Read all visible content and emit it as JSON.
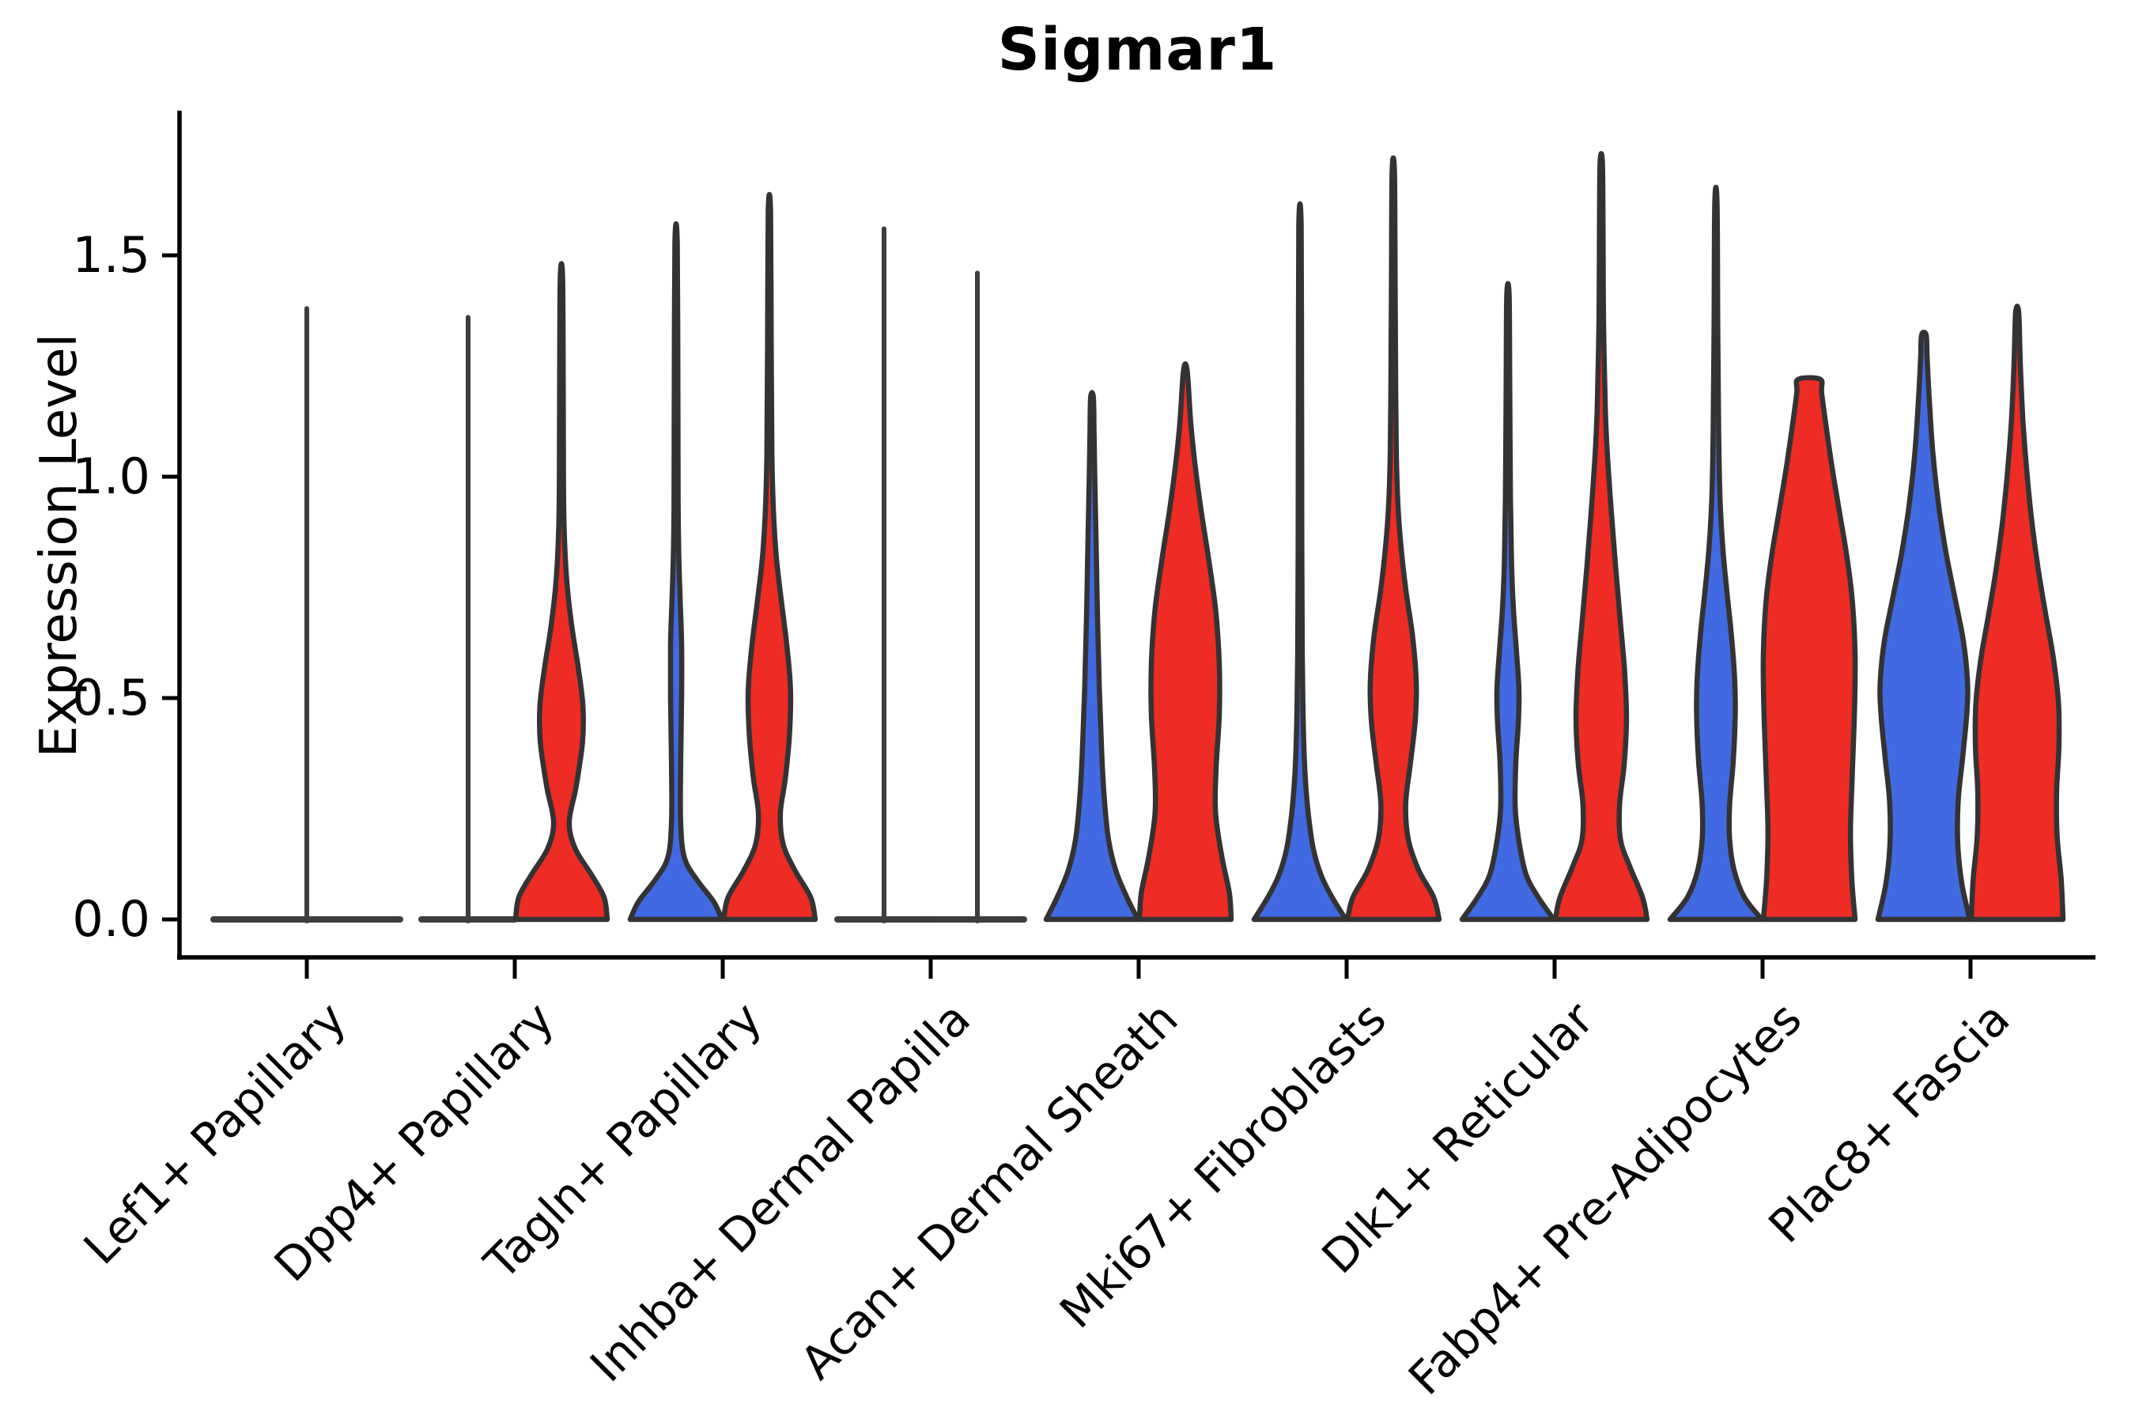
{
  "chart_data": {
    "type": "violin",
    "title": "Sigmar1",
    "ylabel": "Expression Level",
    "xlabel": "",
    "yticks": [
      0.0,
      0.5,
      1.0,
      1.5
    ],
    "ylim": [
      -0.09,
      1.83
    ],
    "grid": false,
    "legend": "none",
    "split_colors": {
      "left_fill": "#4169E1",
      "right_fill": "#EE2B24",
      "outline": "#333333",
      "flat_line": "#3d3d3d",
      "axis": "#000000"
    },
    "categories": [
      "Lef1+ Papillary",
      "Dpp4+ Papillary",
      "Tagln+ Papillary",
      "Inhba+ Dermal Papilla",
      "Acan+ Dermal Sheath",
      "Mki67+ Fibroblasts",
      "Dlk1+ Reticular",
      "Fabp4+ Pre-Adipocytes",
      "Plac8+ Fascia"
    ],
    "groups": [
      {
        "category": "Lef1+ Papillary",
        "violins": [
          {
            "side": "center",
            "fill": "none",
            "style": "flat",
            "max": 1.38
          }
        ]
      },
      {
        "category": "Dpp4+ Papillary",
        "violins": [
          {
            "side": "left",
            "fill": "blue",
            "style": "flat",
            "max": 1.36
          },
          {
            "side": "right",
            "fill": "red",
            "style": "density",
            "max": 1.45,
            "profile": [
              [
                0,
                1.0
              ],
              [
                0.05,
                0.93
              ],
              [
                0.1,
                0.66
              ],
              [
                0.16,
                0.3
              ],
              [
                0.22,
                0.17
              ],
              [
                0.3,
                0.32
              ],
              [
                0.4,
                0.46
              ],
              [
                0.48,
                0.47
              ],
              [
                0.56,
                0.38
              ],
              [
                0.66,
                0.23
              ],
              [
                0.76,
                0.12
              ],
              [
                0.88,
                0.06
              ],
              [
                1.0,
                0.045
              ],
              [
                1.2,
                0.04
              ],
              [
                1.45,
                0.025
              ]
            ]
          }
        ]
      },
      {
        "category": "Tagln+ Papillary",
        "violins": [
          {
            "side": "left",
            "fill": "blue",
            "style": "density",
            "max": 1.53,
            "profile": [
              [
                0,
                1.0
              ],
              [
                0.04,
                0.82
              ],
              [
                0.09,
                0.45
              ],
              [
                0.14,
                0.18
              ],
              [
                0.22,
                0.1
              ],
              [
                0.35,
                0.1
              ],
              [
                0.5,
                0.12
              ],
              [
                0.62,
                0.12
              ],
              [
                0.72,
                0.09
              ],
              [
                0.82,
                0.06
              ],
              [
                0.95,
                0.045
              ],
              [
                1.2,
                0.04
              ],
              [
                1.53,
                0.025
              ]
            ]
          },
          {
            "side": "right",
            "fill": "red",
            "style": "density",
            "max": 1.6,
            "profile": [
              [
                0,
                1.0
              ],
              [
                0.05,
                0.9
              ],
              [
                0.11,
                0.56
              ],
              [
                0.17,
                0.3
              ],
              [
                0.24,
                0.24
              ],
              [
                0.32,
                0.35
              ],
              [
                0.42,
                0.44
              ],
              [
                0.52,
                0.46
              ],
              [
                0.62,
                0.38
              ],
              [
                0.72,
                0.26
              ],
              [
                0.82,
                0.15
              ],
              [
                0.92,
                0.09
              ],
              [
                1.05,
                0.055
              ],
              [
                1.3,
                0.04
              ],
              [
                1.6,
                0.025
              ]
            ]
          }
        ]
      },
      {
        "category": "Inhba+ Dermal Papilla",
        "violins": [
          {
            "side": "left",
            "fill": "blue",
            "style": "flat",
            "max": 1.56
          },
          {
            "side": "right",
            "fill": "red",
            "style": "flat",
            "max": 1.46
          }
        ]
      },
      {
        "category": "Acan+ Dermal Sheath",
        "violins": [
          {
            "side": "left",
            "fill": "blue",
            "style": "density",
            "max": 1.18,
            "profile": [
              [
                0,
                1.0
              ],
              [
                0.05,
                0.76
              ],
              [
                0.11,
                0.52
              ],
              [
                0.18,
                0.36
              ],
              [
                0.27,
                0.27
              ],
              [
                0.38,
                0.21
              ],
              [
                0.52,
                0.16
              ],
              [
                0.68,
                0.12
              ],
              [
                0.85,
                0.09
              ],
              [
                1.0,
                0.06
              ],
              [
                1.1,
                0.045
              ],
              [
                1.18,
                0.03
              ]
            ]
          },
          {
            "side": "right",
            "fill": "red",
            "style": "density",
            "max": 1.24,
            "profile": [
              [
                0,
                1.0
              ],
              [
                0.06,
                0.96
              ],
              [
                0.14,
                0.8
              ],
              [
                0.24,
                0.66
              ],
              [
                0.34,
                0.67
              ],
              [
                0.46,
                0.74
              ],
              [
                0.58,
                0.74
              ],
              [
                0.7,
                0.66
              ],
              [
                0.82,
                0.5
              ],
              [
                0.92,
                0.35
              ],
              [
                1.02,
                0.22
              ],
              [
                1.12,
                0.12
              ],
              [
                1.24,
                0.04
              ]
            ]
          }
        ]
      },
      {
        "category": "Mki67+ Fibroblasts",
        "violins": [
          {
            "side": "left",
            "fill": "blue",
            "style": "density",
            "max": 1.57,
            "profile": [
              [
                0,
                1.0
              ],
              [
                0.05,
                0.7
              ],
              [
                0.1,
                0.46
              ],
              [
                0.16,
                0.29
              ],
              [
                0.24,
                0.18
              ],
              [
                0.33,
                0.11
              ],
              [
                0.45,
                0.07
              ],
              [
                0.6,
                0.05
              ],
              [
                0.85,
                0.04
              ],
              [
                1.2,
                0.035
              ],
              [
                1.57,
                0.025
              ]
            ]
          },
          {
            "side": "right",
            "fill": "red",
            "style": "density",
            "max": 1.69,
            "profile": [
              [
                0,
                1.0
              ],
              [
                0.05,
                0.88
              ],
              [
                0.11,
                0.56
              ],
              [
                0.18,
                0.33
              ],
              [
                0.26,
                0.27
              ],
              [
                0.35,
                0.37
              ],
              [
                0.45,
                0.48
              ],
              [
                0.54,
                0.5
              ],
              [
                0.64,
                0.42
              ],
              [
                0.74,
                0.28
              ],
              [
                0.84,
                0.17
              ],
              [
                0.94,
                0.1
              ],
              [
                1.06,
                0.065
              ],
              [
                1.25,
                0.05
              ],
              [
                1.45,
                0.04
              ],
              [
                1.69,
                0.025
              ]
            ]
          }
        ]
      },
      {
        "category": "Dlk1+ Reticular",
        "violins": [
          {
            "side": "left",
            "fill": "blue",
            "style": "density",
            "max": 1.41,
            "profile": [
              [
                0,
                1.0
              ],
              [
                0.05,
                0.66
              ],
              [
                0.1,
                0.4
              ],
              [
                0.17,
                0.25
              ],
              [
                0.25,
                0.16
              ],
              [
                0.35,
                0.17
              ],
              [
                0.45,
                0.23
              ],
              [
                0.52,
                0.24
              ],
              [
                0.6,
                0.19
              ],
              [
                0.7,
                0.12
              ],
              [
                0.8,
                0.08
              ],
              [
                0.95,
                0.055
              ],
              [
                1.2,
                0.04
              ],
              [
                1.41,
                0.025
              ]
            ]
          },
          {
            "side": "right",
            "fill": "red",
            "style": "density",
            "max": 1.71,
            "profile": [
              [
                0,
                1.0
              ],
              [
                0.05,
                0.9
              ],
              [
                0.12,
                0.62
              ],
              [
                0.18,
                0.42
              ],
              [
                0.26,
                0.4
              ],
              [
                0.35,
                0.5
              ],
              [
                0.45,
                0.55
              ],
              [
                0.56,
                0.51
              ],
              [
                0.68,
                0.41
              ],
              [
                0.8,
                0.31
              ],
              [
                0.92,
                0.22
              ],
              [
                1.04,
                0.14
              ],
              [
                1.15,
                0.09
              ],
              [
                1.35,
                0.05
              ],
              [
                1.55,
                0.04
              ],
              [
                1.71,
                0.025
              ]
            ]
          }
        ]
      },
      {
        "category": "Fabp4+ Pre-Adipocytes",
        "violins": [
          {
            "side": "left",
            "fill": "blue",
            "style": "density",
            "max": 1.62,
            "profile": [
              [
                0,
                1.0
              ],
              [
                0.05,
                0.62
              ],
              [
                0.11,
                0.4
              ],
              [
                0.18,
                0.3
              ],
              [
                0.26,
                0.3
              ],
              [
                0.36,
                0.38
              ],
              [
                0.46,
                0.42
              ],
              [
                0.54,
                0.41
              ],
              [
                0.64,
                0.34
              ],
              [
                0.74,
                0.24
              ],
              [
                0.84,
                0.15
              ],
              [
                0.95,
                0.09
              ],
              [
                1.1,
                0.06
              ],
              [
                1.35,
                0.04
              ],
              [
                1.62,
                0.025
              ]
            ]
          },
          {
            "side": "right",
            "fill": "red",
            "style": "density",
            "max": 1.22,
            "profile": [
              [
                0,
                1.0
              ],
              [
                0.09,
                0.93
              ],
              [
                0.2,
                0.9
              ],
              [
                0.33,
                0.94
              ],
              [
                0.48,
                0.99
              ],
              [
                0.6,
                1.0
              ],
              [
                0.72,
                0.94
              ],
              [
                0.82,
                0.82
              ],
              [
                0.92,
                0.66
              ],
              [
                1.02,
                0.5
              ],
              [
                1.12,
                0.36
              ],
              [
                1.19,
                0.27
              ],
              [
                1.22,
                0.24
              ]
            ]
          }
        ]
      },
      {
        "category": "Plac8+ Fascia",
        "violins": [
          {
            "side": "left",
            "fill": "blue",
            "style": "density",
            "max": 1.32,
            "profile": [
              [
                0,
                1.0
              ],
              [
                0.08,
                0.83
              ],
              [
                0.17,
                0.74
              ],
              [
                0.27,
                0.75
              ],
              [
                0.37,
                0.85
              ],
              [
                0.47,
                0.94
              ],
              [
                0.54,
                0.95
              ],
              [
                0.63,
                0.86
              ],
              [
                0.73,
                0.67
              ],
              [
                0.83,
                0.48
              ],
              [
                0.93,
                0.33
              ],
              [
                1.05,
                0.2
              ],
              [
                1.17,
                0.12
              ],
              [
                1.27,
                0.07
              ],
              [
                1.32,
                0.05
              ]
            ]
          },
          {
            "side": "right",
            "fill": "red",
            "style": "density",
            "max": 1.37,
            "profile": [
              [
                0,
                1.0
              ],
              [
                0.09,
                0.96
              ],
              [
                0.19,
                0.87
              ],
              [
                0.29,
                0.86
              ],
              [
                0.39,
                0.91
              ],
              [
                0.49,
                0.9
              ],
              [
                0.59,
                0.79
              ],
              [
                0.69,
                0.62
              ],
              [
                0.79,
                0.46
              ],
              [
                0.89,
                0.33
              ],
              [
                1.0,
                0.22
              ],
              [
                1.12,
                0.13
              ],
              [
                1.25,
                0.07
              ],
              [
                1.37,
                0.035
              ]
            ]
          }
        ]
      }
    ]
  }
}
